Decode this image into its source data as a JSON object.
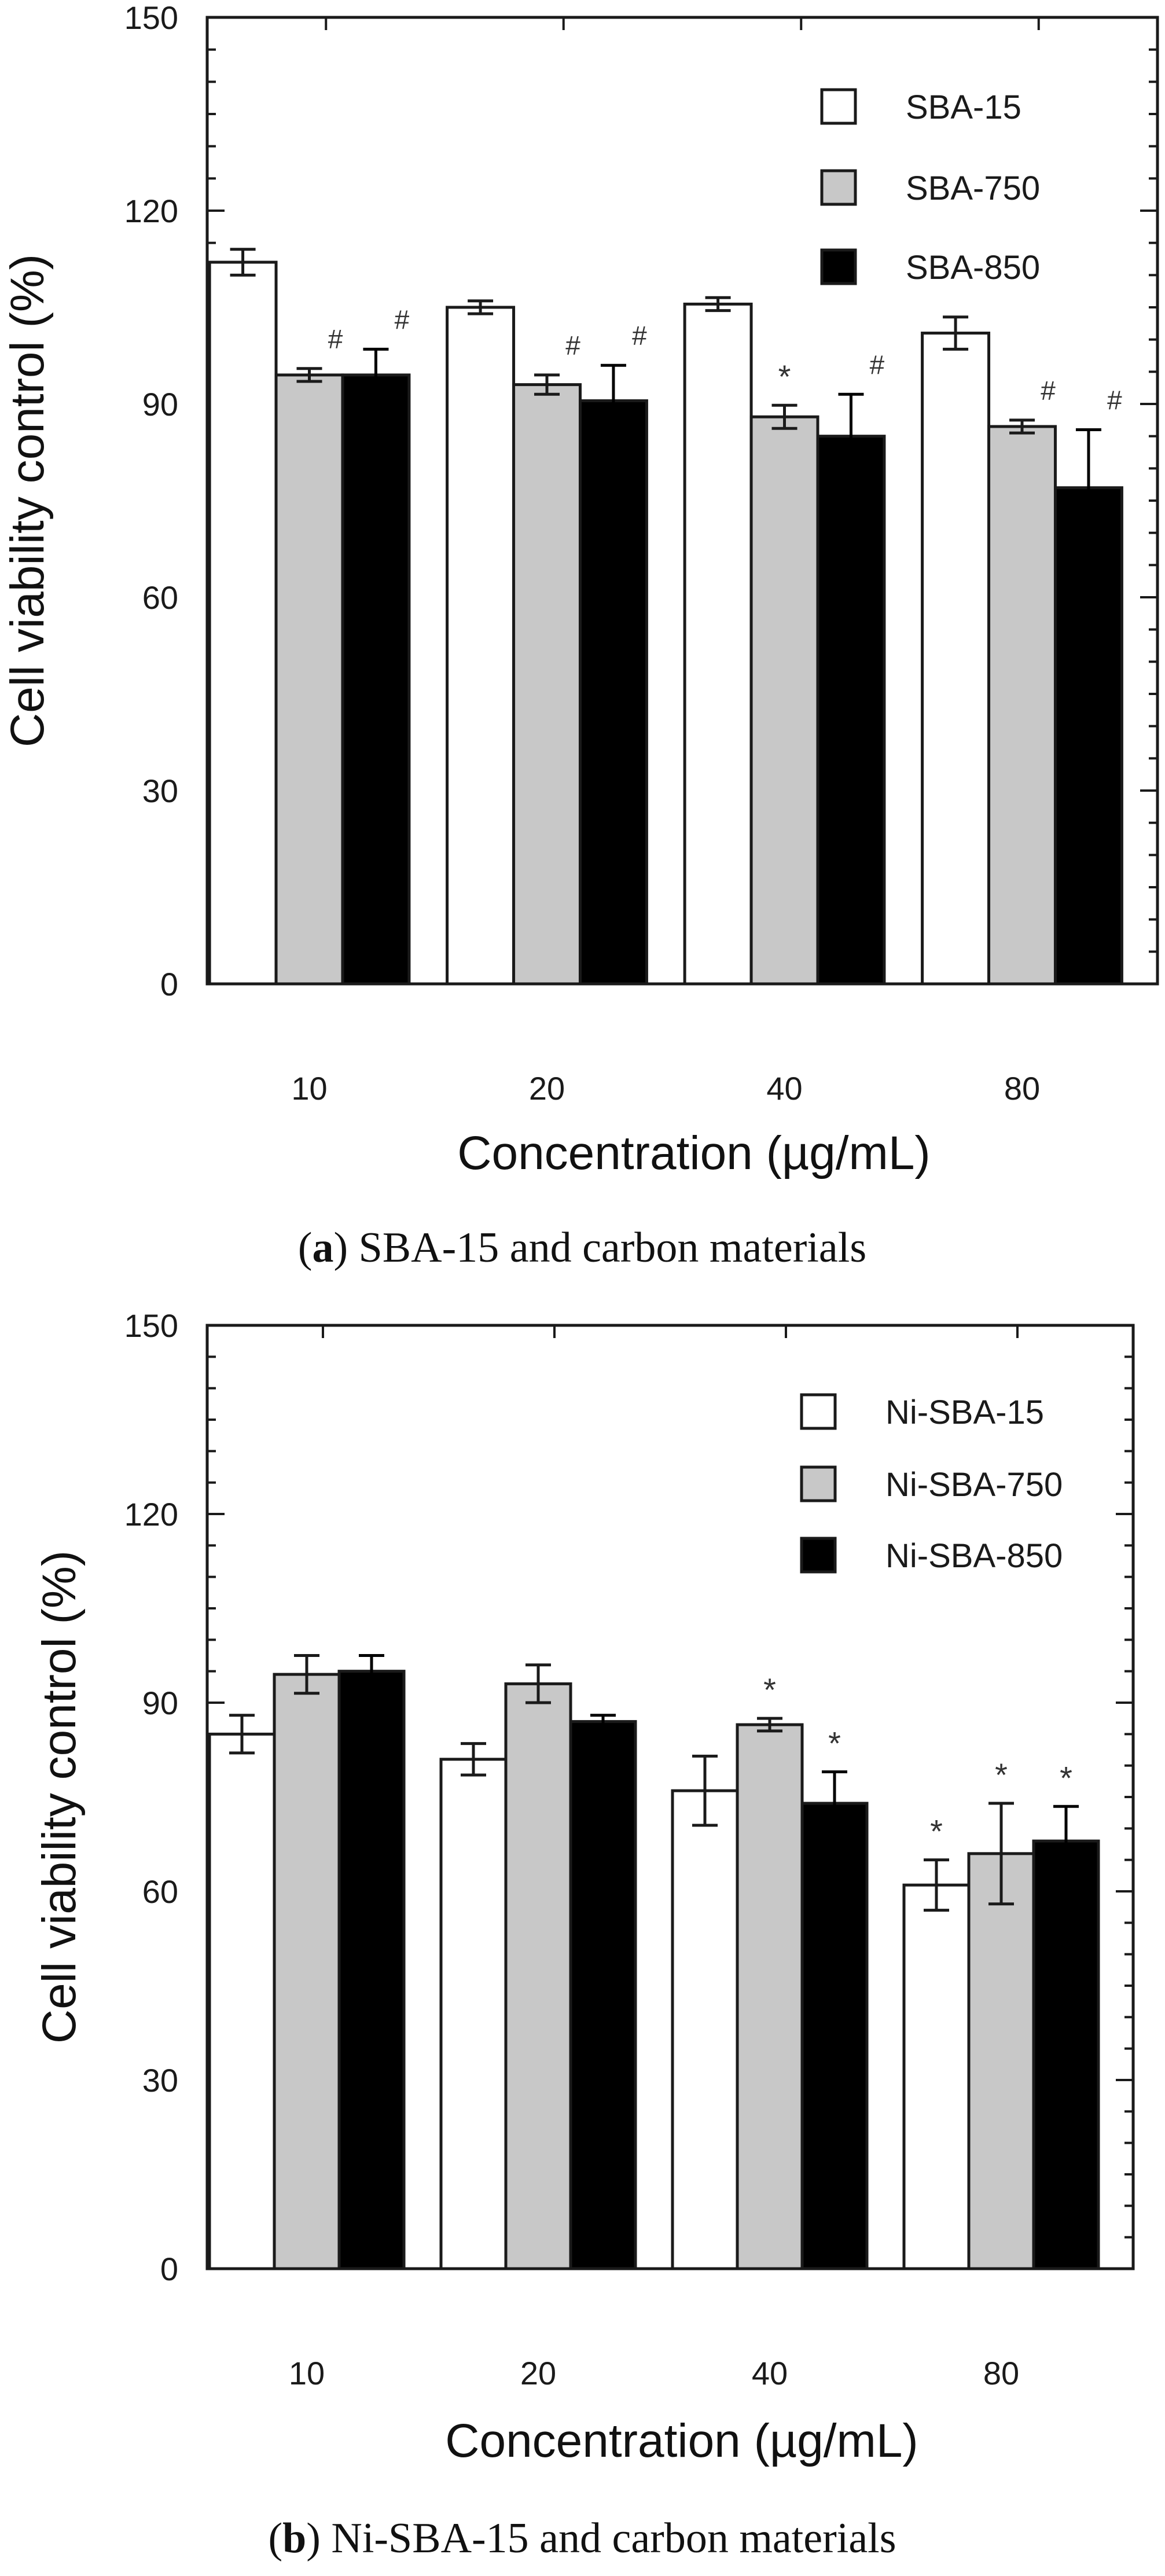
{
  "colors": {
    "axis": "#1a1a1a",
    "series_fills": [
      "#ffffff",
      "#c8c8c8",
      "#000000"
    ]
  },
  "chart_data": [
    {
      "type": "bar",
      "panel": "a",
      "caption_letter": "a",
      "caption_text": ") SBA-15 and carbon materials",
      "categories": [
        "10",
        "20",
        "40",
        "80"
      ],
      "series": [
        {
          "name": "SBA-15",
          "fill": "#ffffff",
          "values": [
            112,
            105,
            105.5,
            101
          ],
          "errors": [
            2,
            1,
            1,
            2.5
          ],
          "markers": [
            "",
            "",
            "",
            ""
          ]
        },
        {
          "name": "SBA-750",
          "fill": "#c8c8c8",
          "values": [
            94.5,
            93,
            88,
            86.5
          ],
          "errors": [
            1,
            1.5,
            1.8,
            1
          ],
          "markers": [
            "#",
            "#",
            "*",
            "#"
          ]
        },
        {
          "name": "SBA-850",
          "fill": "#000000",
          "values": [
            94.5,
            90.5,
            85,
            77
          ],
          "errors": [
            4,
            5.5,
            6.5,
            9
          ],
          "markers": [
            "#",
            "#",
            "#",
            "#"
          ]
        }
      ],
      "xlabel": "Concentration (µg/mL)",
      "ylabel": "Cell viability control (%)",
      "yticks": [
        0,
        30,
        60,
        90,
        120,
        150
      ],
      "ylim": [
        0,
        150
      ],
      "grid": false,
      "legend_position": "top-right"
    },
    {
      "type": "bar",
      "panel": "b",
      "caption_letter": "b",
      "caption_text": ") Ni-SBA-15 and carbon materials",
      "categories": [
        "10",
        "20",
        "40",
        "80"
      ],
      "series": [
        {
          "name": "Ni-SBA-15",
          "fill": "#ffffff",
          "values": [
            85,
            81,
            76,
            61
          ],
          "errors": [
            3,
            2.5,
            5.5,
            4
          ],
          "markers": [
            "",
            "",
            "",
            "*"
          ]
        },
        {
          "name": "Ni-SBA-750",
          "fill": "#c8c8c8",
          "values": [
            94.5,
            93,
            86.5,
            66
          ],
          "errors": [
            3,
            3,
            1,
            8
          ],
          "markers": [
            "",
            "",
            "*",
            "*"
          ]
        },
        {
          "name": "Ni-SBA-850",
          "fill": "#000000",
          "values": [
            95,
            87,
            74,
            68
          ],
          "errors": [
            2.5,
            1,
            5,
            5.5
          ],
          "markers": [
            "",
            "",
            "*",
            "*"
          ]
        }
      ],
      "xlabel": "Concentration (µg/mL)",
      "ylabel": "Cell viability control (%)",
      "yticks": [
        0,
        30,
        60,
        90,
        120,
        150
      ],
      "ylim": [
        0,
        150
      ],
      "grid": false,
      "legend_position": "top-right"
    }
  ]
}
